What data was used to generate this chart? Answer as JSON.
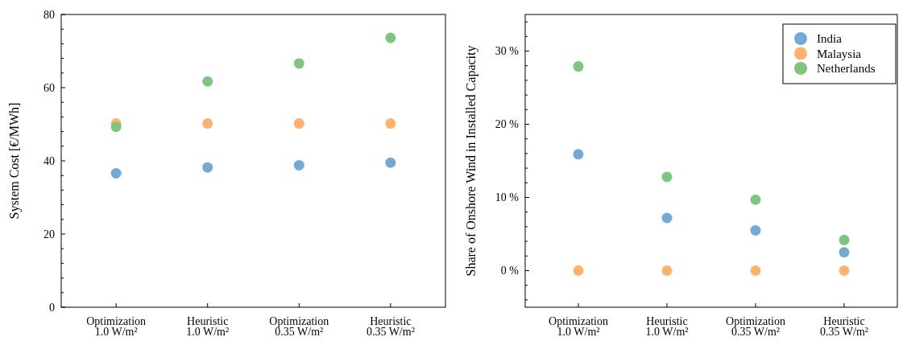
{
  "chart_data": [
    {
      "type": "scatter",
      "ylabel": "System Cost [€/MWh]",
      "categories": [
        "Optimization\n1.0 W/m²",
        "Heuristic\n1.0 W/m²",
        "Optimization\n0.35 W/m²",
        "Heuristic\n0.35 W/m²"
      ],
      "marker": "circle",
      "series": [
        {
          "color": "#73a9d3",
          "values": [
            36.6,
            38.2,
            38.8,
            39.5
          ]
        },
        {
          "color": "#ffb26e",
          "values": [
            50.2,
            50.2,
            50.2,
            50.2
          ]
        },
        {
          "color": "#7fc57f",
          "values": [
            49.3,
            61.7,
            66.6,
            73.6
          ]
        }
      ],
      "ylim": [
        0,
        80
      ],
      "yticks": [
        0,
        {
          "value": 4,
          "label": null
        },
        {
          "value": 8,
          "label": null
        },
        {
          "value": 12,
          "label": null
        },
        {
          "value": 16,
          "label": null
        },
        20,
        {
          "value": 24,
          "label": null
        },
        {
          "value": 28,
          "label": null
        },
        {
          "value": 32,
          "label": null
        },
        {
          "value": 36,
          "label": null
        },
        40,
        {
          "value": 44,
          "label": null
        },
        {
          "value": 48,
          "label": null
        },
        {
          "value": 52,
          "label": null
        },
        {
          "value": 56,
          "label": null
        },
        60,
        {
          "value": 64,
          "label": null
        },
        {
          "value": 68,
          "label": null
        },
        {
          "value": 72,
          "label": null
        },
        {
          "value": 76,
          "label": null
        },
        80
      ]
    },
    {
      "type": "scatter",
      "ylabel": "Share of Onshore Wind in Installed Capacity",
      "categories": [
        "Optimization\n1.0 W/m²",
        "Heuristic\n1.0 W/m²",
        "Optimization\n0.35 W/m²",
        "Heuristic\n0.35 W/m²"
      ],
      "marker": "circle",
      "legend": "top right",
      "series": [
        {
          "name": "India",
          "color": "#73a9d3",
          "values": [
            15.9,
            7.2,
            5.5,
            2.5
          ]
        },
        {
          "name": "Malaysia",
          "color": "#ffb26e",
          "values": [
            0,
            0,
            0,
            0
          ]
        },
        {
          "name": "Netherlands",
          "color": "#7fc57f",
          "values": [
            27.9,
            12.8,
            9.7,
            4.2
          ]
        }
      ],
      "ylim": [
        -5,
        35
      ],
      "yticks": [
        {
          "value": -4,
          "label": null
        },
        {
          "value": -2,
          "label": null
        },
        {
          "value": 0,
          "label": "0 %"
        },
        {
          "value": 2,
          "label": null
        },
        {
          "value": 4,
          "label": null
        },
        {
          "value": 6,
          "label": null
        },
        {
          "value": 8,
          "label": null
        },
        {
          "value": 10,
          "label": "10 %"
        },
        {
          "value": 12,
          "label": null
        },
        {
          "value": 14,
          "label": null
        },
        {
          "value": 16,
          "label": null
        },
        {
          "value": 18,
          "label": null
        },
        {
          "value": 20,
          "label": "20 %"
        },
        {
          "value": 22,
          "label": null
        },
        {
          "value": 24,
          "label": null
        },
        {
          "value": 26,
          "label": null
        },
        {
          "value": 28,
          "label": null
        },
        {
          "value": 30,
          "label": "30 %"
        },
        {
          "value": 32,
          "label": null
        },
        {
          "value": 34,
          "label": null
        }
      ]
    }
  ]
}
